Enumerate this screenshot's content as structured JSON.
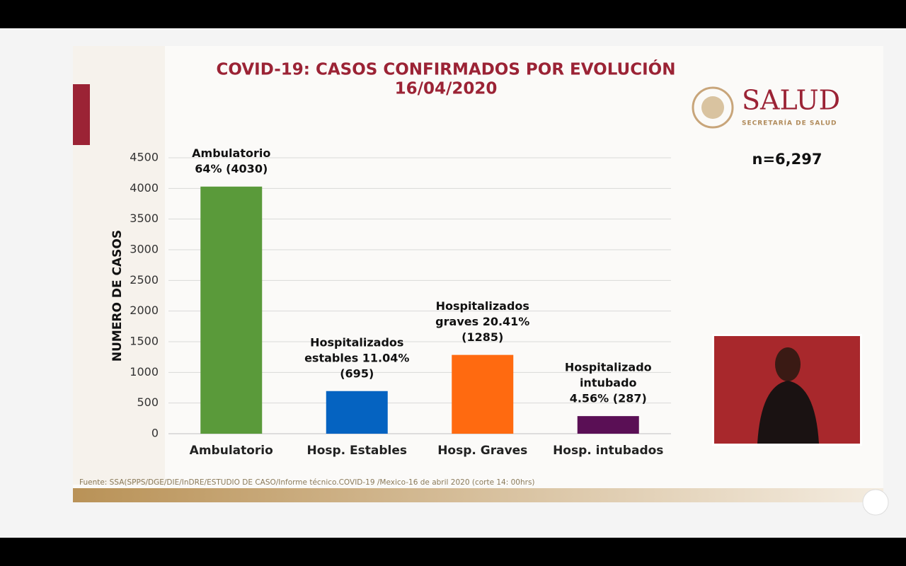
{
  "chart_data": {
    "type": "bar",
    "title": "COVID-19: CASOS CONFIRMADOS POR EVOLUCIÓN",
    "subtitle": "16/04/2020",
    "ylabel": "NUMERO DE CASOS",
    "categories": [
      "Ambulatorio",
      "Hosp. Estables",
      "Hosp. Graves",
      "Hosp. intubados"
    ],
    "values": [
      4030,
      695,
      1285,
      287
    ],
    "value_labels": [
      [
        "Ambulatorio",
        "64% (4030)"
      ],
      [
        "Hospitalizados",
        "estables 11.04%",
        "(695)"
      ],
      [
        "Hospitalizados",
        "graves 20.41%",
        "(1285)"
      ],
      [
        "Hospitalizado",
        "intubado",
        "4.56% (287)"
      ]
    ],
    "colors": [
      "#5a9a3a",
      "#0563c1",
      "#ff6a10",
      "#5a0f55"
    ],
    "ylim": [
      0,
      4500
    ],
    "yticks": [
      0,
      500,
      1000,
      1500,
      2000,
      2500,
      3000,
      3500,
      4000,
      4500
    ],
    "grid": true,
    "annotation": "n=6,297",
    "logo": {
      "name": "SALUD",
      "subtitle": "SECRETARÍA DE SALUD"
    },
    "source": "Fuente: SSA(SPPS/DGE/DIE/InDRE/ESTUDIO DE CASO/Informe técnico.COVID-19 /Mexico-16 de abril 2020 (corte 14: 00hrs)"
  }
}
